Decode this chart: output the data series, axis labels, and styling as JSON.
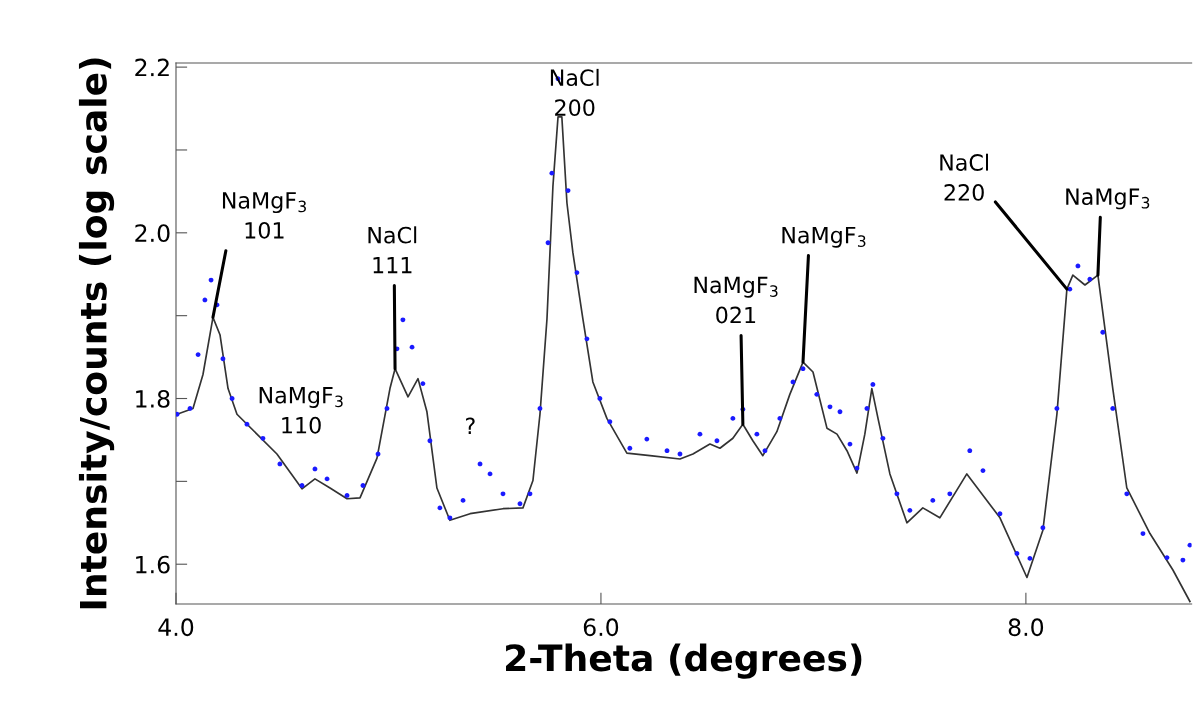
{
  "chart_data": {
    "type": "line",
    "xlabel": "2-Theta (degrees)",
    "ylabel": "Intensity/counts (log scale)",
    "xlim": [
      4.0,
      8.78
    ],
    "ylim": [
      1.552,
      2.205
    ],
    "xticks": [
      {
        "value": 4.0,
        "label": "4.0"
      },
      {
        "value": 6.0,
        "label": "6.0"
      },
      {
        "value": 8.0,
        "label": "8.0"
      }
    ],
    "yticks": [
      {
        "value": 1.6,
        "label": "1.6"
      },
      {
        "value": 1.7,
        "label": null
      },
      {
        "value": 1.8,
        "label": "1.8"
      },
      {
        "value": 1.9,
        "label": null
      },
      {
        "value": 2.0,
        "label": "2.0"
      },
      {
        "value": 2.1,
        "label": null
      },
      {
        "value": 2.2,
        "label": "2.2"
      }
    ],
    "series": [
      {
        "color": "#333333",
        "line_style": "solid",
        "x": [
          4.005,
          4.08,
          4.127,
          4.174,
          4.207,
          4.245,
          4.287,
          4.381,
          4.475,
          4.593,
          4.654,
          4.725,
          4.805,
          4.866,
          4.946,
          5.007,
          5.031,
          5.092,
          5.139,
          5.181,
          5.228,
          5.289,
          5.384,
          5.539,
          5.633,
          5.68,
          5.713,
          5.746,
          5.774,
          5.798,
          5.816,
          5.84,
          5.868,
          5.915,
          5.962,
          6.028,
          6.122,
          6.231,
          6.372,
          6.433,
          6.513,
          6.56,
          6.621,
          6.668,
          6.715,
          6.762,
          6.828,
          6.889,
          6.951,
          6.998,
          7.064,
          7.111,
          7.158,
          7.205,
          7.242,
          7.275,
          7.304,
          7.36,
          7.44,
          7.515,
          7.595,
          7.722,
          7.878,
          8.005,
          8.08,
          8.146,
          8.193,
          8.221,
          8.278,
          8.339,
          8.409,
          8.475,
          8.584,
          8.692,
          8.772
        ],
        "values": [
          1.781,
          1.788,
          1.829,
          1.898,
          1.877,
          1.812,
          1.781,
          1.757,
          1.733,
          1.691,
          1.703,
          1.692,
          1.679,
          1.68,
          1.728,
          1.812,
          1.836,
          1.802,
          1.824,
          1.784,
          1.692,
          1.653,
          1.661,
          1.667,
          1.668,
          1.701,
          1.781,
          1.896,
          2.056,
          2.14,
          2.14,
          2.036,
          1.976,
          1.896,
          1.82,
          1.776,
          1.734,
          1.731,
          1.727,
          1.733,
          1.745,
          1.74,
          1.752,
          1.769,
          1.749,
          1.731,
          1.76,
          1.805,
          1.844,
          1.832,
          1.764,
          1.757,
          1.737,
          1.71,
          1.757,
          1.812,
          1.776,
          1.709,
          1.65,
          1.668,
          1.656,
          1.709,
          1.656,
          1.584,
          1.641,
          1.781,
          1.932,
          1.949,
          1.937,
          1.949,
          1.812,
          1.692,
          1.637,
          1.593,
          1.555
        ]
      },
      {
        "type": "scatter",
        "color": "#1a1aff",
        "marker": "circle",
        "x": [
          4.005,
          4.066,
          4.104,
          4.136,
          4.165,
          4.193,
          4.221,
          4.264,
          4.334,
          4.409,
          4.489,
          4.593,
          4.654,
          4.711,
          4.805,
          4.88,
          4.951,
          4.993,
          5.04,
          5.068,
          5.111,
          5.162,
          5.195,
          5.242,
          5.289,
          5.351,
          5.431,
          5.478,
          5.539,
          5.619,
          5.666,
          5.713,
          5.751,
          5.769,
          5.798,
          5.845,
          5.887,
          5.934,
          5.995,
          6.042,
          6.136,
          6.216,
          6.311,
          6.372,
          6.466,
          6.546,
          6.621,
          6.668,
          6.734,
          6.772,
          6.842,
          6.904,
          6.951,
          7.016,
          7.078,
          7.125,
          7.172,
          7.205,
          7.252,
          7.28,
          7.327,
          7.393,
          7.454,
          7.562,
          7.642,
          7.736,
          7.798,
          7.878,
          7.958,
          8.019,
          8.08,
          8.146,
          8.207,
          8.245,
          8.301,
          8.362,
          8.409,
          8.475,
          8.551,
          8.664,
          8.739,
          8.772
        ],
        "values": [
          1.781,
          1.788,
          1.853,
          1.919,
          1.943,
          1.913,
          1.848,
          1.8,
          1.769,
          1.752,
          1.721,
          1.695,
          1.715,
          1.703,
          1.683,
          1.695,
          1.733,
          1.788,
          1.86,
          1.895,
          1.862,
          1.818,
          1.749,
          1.668,
          1.656,
          1.677,
          1.721,
          1.709,
          1.685,
          1.673,
          1.685,
          1.788,
          1.988,
          2.072,
          2.186,
          2.051,
          1.952,
          1.872,
          1.8,
          1.772,
          1.74,
          1.751,
          1.737,
          1.733,
          1.757,
          1.749,
          1.776,
          1.787,
          1.757,
          1.737,
          1.776,
          1.82,
          1.836,
          1.805,
          1.79,
          1.784,
          1.745,
          1.716,
          1.788,
          1.817,
          1.752,
          1.685,
          1.665,
          1.677,
          1.685,
          1.737,
          1.713,
          1.661,
          1.613,
          1.607,
          1.644,
          1.788,
          1.932,
          1.96,
          1.944,
          1.88,
          1.788,
          1.685,
          1.637,
          1.608,
          1.605,
          1.623
        ]
      }
    ],
    "annotations": [
      {
        "text": "NaMgF$_{3}$\n101",
        "x": 4.174,
        "y": 1.898
      },
      {
        "text": "NaMgF$_{3}$\n110",
        "x": 4.654,
        "y": 1.703
      },
      {
        "text": "NaCl\n111",
        "x": 5.031,
        "y": 1.836
      },
      {
        "text": "?",
        "x": 5.431,
        "y": 1.721
      },
      {
        "text": "NaCl\n200",
        "x": 5.798,
        "y": 2.14
      },
      {
        "text": "NaMgF$_{3}$\n021",
        "x": 6.668,
        "y": 1.769
      },
      {
        "text": "NaMgF$_{3}$",
        "x": 6.951,
        "y": 1.844
      },
      {
        "text": "NaCl\n220",
        "x": 8.193,
        "y": 1.932
      },
      {
        "text": "NaMgF$_{3}$",
        "x": 8.339,
        "y": 1.949
      }
    ]
  }
}
